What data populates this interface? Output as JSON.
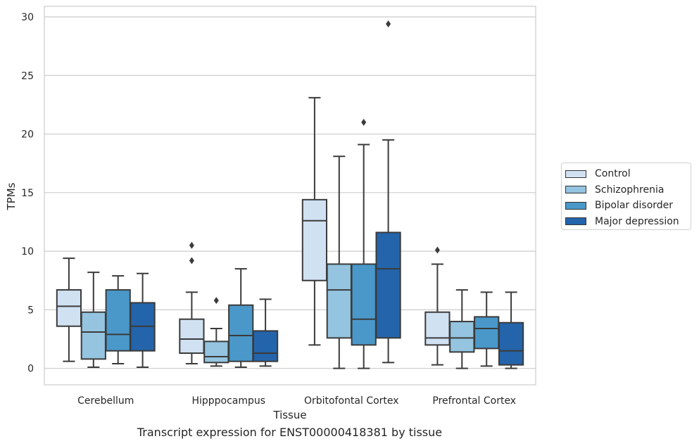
{
  "chart_data": {
    "type": "box",
    "title": "Transcript expression for ENST00000418381 by tissue",
    "xlabel": "Tissue",
    "ylabel": "TPMs",
    "ylim": [
      -1.4,
      30.9
    ],
    "yticks": [
      0,
      5,
      10,
      15,
      20,
      25,
      30
    ],
    "grid": "horizontal",
    "legend_position": "right",
    "categories": [
      "Cerebellum",
      "Hipppocampus",
      "Orbitofontal Cortex",
      "Prefrontal Cortex"
    ],
    "series": [
      {
        "name": "Control",
        "color": "#d0e1f2",
        "boxes": [
          {
            "whislo": 0.6,
            "q1": 3.6,
            "med": 5.3,
            "q3": 6.7,
            "whishi": 9.4,
            "fliers": []
          },
          {
            "whislo": 0.4,
            "q1": 1.3,
            "med": 2.5,
            "q3": 4.2,
            "whishi": 6.5,
            "fliers": [
              9.2,
              10.5
            ]
          },
          {
            "whislo": 2.0,
            "q1": 7.5,
            "med": 12.6,
            "q3": 14.4,
            "whishi": 23.1,
            "fliers": []
          },
          {
            "whislo": 0.3,
            "q1": 2.0,
            "med": 2.6,
            "q3": 4.8,
            "whishi": 8.9,
            "fliers": [
              10.1
            ]
          }
        ]
      },
      {
        "name": "Schizophrenia",
        "color": "#94c4df",
        "boxes": [
          {
            "whislo": 0.1,
            "q1": 0.8,
            "med": 3.1,
            "q3": 4.8,
            "whishi": 8.2,
            "fliers": []
          },
          {
            "whislo": 0.2,
            "q1": 0.5,
            "med": 1.0,
            "q3": 2.3,
            "whishi": 3.4,
            "fliers": [
              5.8
            ]
          },
          {
            "whislo": 0.0,
            "q1": 2.6,
            "med": 6.7,
            "q3": 8.9,
            "whishi": 18.1,
            "fliers": []
          },
          {
            "whislo": 0.0,
            "q1": 1.4,
            "med": 2.6,
            "q3": 4.0,
            "whishi": 6.7,
            "fliers": []
          }
        ]
      },
      {
        "name": "Bipolar disorder",
        "color": "#4a98c9",
        "boxes": [
          {
            "whislo": 0.4,
            "q1": 1.5,
            "med": 2.9,
            "q3": 6.7,
            "whishi": 7.9,
            "fliers": []
          },
          {
            "whislo": 0.1,
            "q1": 0.6,
            "med": 2.8,
            "q3": 5.4,
            "whishi": 8.5,
            "fliers": []
          },
          {
            "whislo": 0.0,
            "q1": 2.0,
            "med": 4.2,
            "q3": 8.9,
            "whishi": 19.1,
            "fliers": [
              21.0
            ]
          },
          {
            "whislo": 0.2,
            "q1": 1.7,
            "med": 3.4,
            "q3": 4.4,
            "whishi": 6.5,
            "fliers": []
          }
        ]
      },
      {
        "name": "Major depression",
        "color": "#2464aa",
        "boxes": [
          {
            "whislo": 0.1,
            "q1": 1.5,
            "med": 3.6,
            "q3": 5.6,
            "whishi": 8.1,
            "fliers": []
          },
          {
            "whislo": 0.2,
            "q1": 0.6,
            "med": 1.3,
            "q3": 3.2,
            "whishi": 5.9,
            "fliers": []
          },
          {
            "whislo": 0.5,
            "q1": 2.6,
            "med": 8.5,
            "q3": 11.6,
            "whishi": 19.5,
            "fliers": [
              29.4
            ]
          },
          {
            "whislo": 0.0,
            "q1": 0.3,
            "med": 1.5,
            "q3": 3.9,
            "whishi": 6.5,
            "fliers": []
          }
        ]
      }
    ]
  }
}
